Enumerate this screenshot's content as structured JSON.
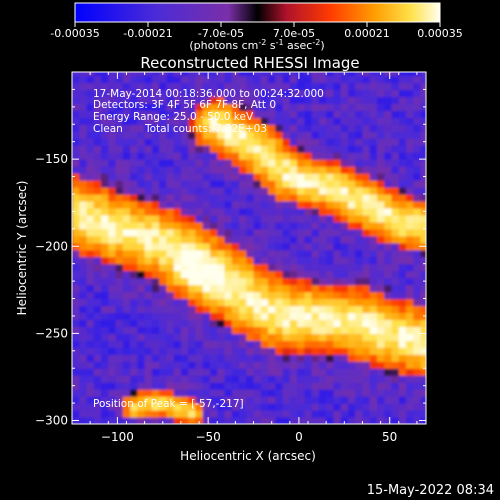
{
  "colorbar": {
    "ticks": [
      -0.00035,
      -0.00021,
      -7e-05,
      7e-05,
      0.00021,
      0.00035
    ],
    "tick_labels": [
      "-0.00035",
      "-0.00021",
      "-7.0e-05",
      "7.0e-05",
      "0.00021",
      "0.00035"
    ],
    "unit_main": "(photons cm",
    "unit_exp1": "-2",
    "unit_mid": " s",
    "unit_exp2": "-1",
    "unit_mid2": " asec",
    "unit_exp3": "-2",
    "unit_end": ")"
  },
  "chart_data": {
    "type": "heatmap",
    "title": "Reconstructed RHESSI Image",
    "xlabel": "Heliocentric X (arcsec)",
    "ylabel": "Heliocentric Y (arcsec)",
    "xlim": [
      -125,
      70
    ],
    "ylim": [
      -302,
      -100
    ],
    "xticks": [
      -100,
      -50,
      0,
      50
    ],
    "yticks": [
      -150,
      -200,
      -250,
      -300
    ],
    "value_range": [
      -0.00035,
      0.00035
    ],
    "peak_position": [
      -57,
      -217
    ],
    "bright_ridges": [
      {
        "x": [
          -125,
          -100,
          -75,
          -55,
          -30,
          -10,
          5,
          30,
          50,
          70
        ],
        "y": [
          -180,
          -190,
          -198,
          -210,
          -228,
          -240,
          -240,
          -243,
          -250,
          -255
        ]
      },
      {
        "x": [
          -45,
          -25,
          -5,
          15,
          35,
          55,
          70
        ],
        "y": [
          -130,
          -142,
          -160,
          -165,
          -175,
          -185,
          -188
        ]
      },
      {
        "x": [
          -90,
          -75,
          -60
        ],
        "y": [
          -292,
          -290,
          -295
        ]
      }
    ]
  },
  "annotations": {
    "time_range": "17-May-2014 00:18:36.000 to 00:24:32.000",
    "detectors": "Detectors: 3F 4F 5F 6F 7F 8F, Att 0",
    "energy_range": "Energy Range: 25.0 - 50.0 keV",
    "method": "Clean",
    "total_counts": "Total counts: 7.32E+03",
    "peak_label": "Position of Peak = [-57,-217]"
  },
  "footer": {
    "timestamp": "15-May-2022 08:34"
  }
}
